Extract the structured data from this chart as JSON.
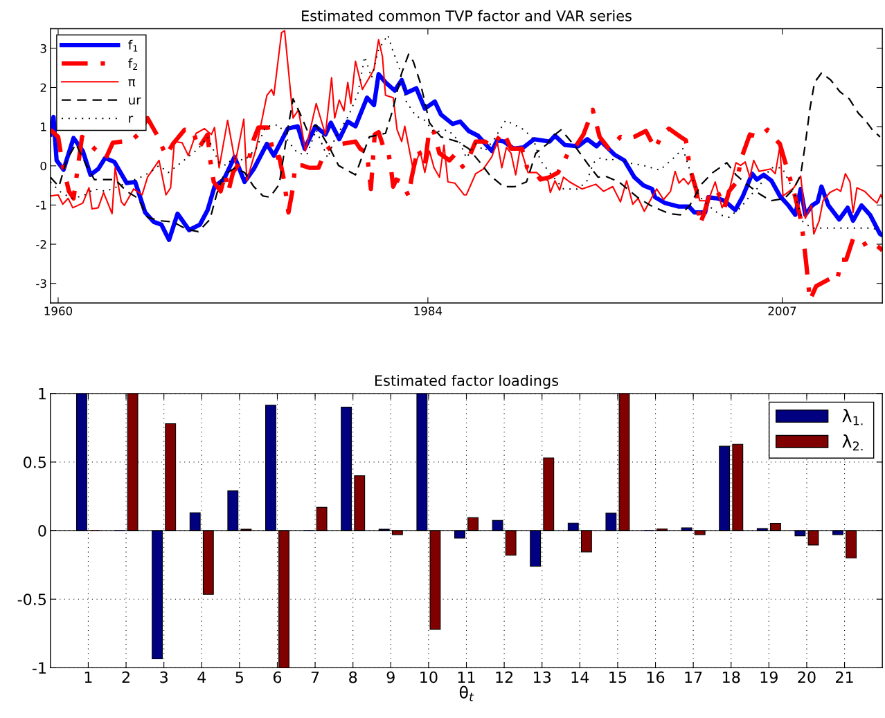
{
  "chart_data": [
    {
      "type": "line",
      "title": "Estimated common TVP factor and VAR series",
      "xlim": [
        1959.5,
        2013.5
      ],
      "xticks": [
        1960,
        1984,
        2007
      ],
      "ylim": [
        -3.5,
        3.5
      ],
      "yticks": [
        -3,
        -2,
        -1,
        0,
        1,
        2,
        3
      ],
      "legend": "top left",
      "grid": false,
      "marker": "none",
      "series": [
        {
          "name": "f$_{1}$",
          "color": "#0000ff",
          "line_style": "solid",
          "x": [
            1959.5,
            1959.7,
            1959.9,
            1960.35,
            1961.0,
            1961.6,
            1962.1,
            1962.6,
            1963.05,
            1963.65,
            1964.45,
            1965.0,
            1965.65,
            1966.2,
            1966.7,
            1967.2,
            1967.75,
            1968.5,
            1969.2,
            1969.7,
            1970.15,
            1970.75,
            1971.45,
            1972.1,
            1972.7,
            1973.55,
            1974.0,
            1974.9,
            1975.55,
            1976.0,
            1976.7,
            1977.35,
            1977.7,
            1978.25,
            1978.8,
            1979.3,
            1980.05,
            1980.5,
            1980.8,
            1981.25,
            1981.85,
            1982.3,
            1982.6,
            1983.25,
            1983.8,
            1984.45,
            1984.85,
            1985.6,
            1986.1,
            1986.65,
            1987.25,
            1988.15,
            1988.5,
            1988.95,
            1989.55,
            1990.2,
            1990.9,
            1991.9,
            1992.25,
            1992.9,
            1993.75,
            1994.35,
            1994.95,
            1995.25,
            1996.1,
            1996.75,
            1997.4,
            1998.0,
            1998.55,
            1998.75,
            1999.4,
            2000.3,
            2000.95,
            2001.3,
            2002.0,
            2002.2,
            2002.8,
            2003.25,
            2003.95,
            2004.45,
            2005.05,
            2005.35,
            2005.8,
            2006.3,
            2006.85,
            2007.4,
            2007.85,
            2008.2,
            2008.5,
            2008.95,
            2009.3,
            2009.55,
            2010.0,
            2010.7,
            2011.25,
            2011.6,
            2012.15,
            2012.7,
            2013.35,
            2013.5
          ],
          "values": [
            0.8,
            1.25,
            0.14,
            -0.1,
            0.71,
            0.38,
            -0.23,
            -0.08,
            0.2,
            0.1,
            -0.44,
            -0.41,
            -1.19,
            -1.43,
            -1.5,
            -1.89,
            -1.22,
            -1.64,
            -1.5,
            -1.13,
            -0.53,
            -0.35,
            0.23,
            -0.41,
            -0.08,
            0.56,
            0.26,
            0.95,
            1.01,
            0.44,
            1.01,
            0.8,
            1.1,
            0.68,
            1.13,
            1.01,
            1.74,
            1.55,
            2.34,
            2.13,
            1.92,
            2.19,
            1.86,
            1.98,
            1.46,
            1.64,
            1.31,
            1.07,
            1.13,
            0.89,
            0.77,
            0.38,
            0.65,
            0.62,
            0.44,
            0.47,
            0.68,
            0.62,
            0.77,
            0.53,
            0.5,
            0.68,
            0.5,
            0.62,
            0.29,
            0.14,
            -0.29,
            -0.5,
            -0.59,
            -0.8,
            -0.95,
            -1.04,
            -1.04,
            -1.19,
            -1.19,
            -0.8,
            -0.83,
            -0.89,
            -1.13,
            -0.77,
            -0.2,
            -0.35,
            -0.23,
            -0.38,
            -0.77,
            -1.01,
            -1.25,
            -0.59,
            -1.25,
            -1.01,
            -0.92,
            -0.53,
            -1.01,
            -1.37,
            -1.07,
            -1.4,
            -1.01,
            -1.25,
            -1.74,
            -1.77
          ]
        },
        {
          "name": "f$_{2}$",
          "color": "#ff0000",
          "line_style": "dashdot",
          "x": [
            1959.5,
            1960.0,
            1960.3,
            1960.7,
            1961.0,
            1961.55,
            1962.35,
            1962.8,
            1963.1,
            1963.55,
            1964.15,
            1964.75,
            1965.2,
            1965.8,
            1966.4,
            1967.0,
            1967.45,
            1968.2,
            1968.75,
            1969.1,
            1969.7,
            1969.85,
            1970.1,
            1970.55,
            1970.85,
            1971.05,
            1971.35,
            1971.8,
            1972.4,
            1972.7,
            1973.0,
            1973.6,
            1974.05,
            1974.35,
            1974.65,
            1974.95,
            1975.2,
            1975.4,
            1975.85,
            1976.3,
            1976.9,
            1977.35,
            1977.95,
            1978.4,
            1979.3,
            1979.6,
            1980.05,
            1980.3,
            1980.55,
            1980.8,
            1981.1,
            1981.4,
            1981.6,
            1981.75,
            1981.95,
            1982.3,
            1982.75,
            1982.95,
            1983.35,
            1983.8,
            1984.1,
            1984.4,
            1984.75,
            1985.4,
            1985.75,
            1986.25,
            1986.65,
            1987.1,
            1987.7,
            1988.15,
            1988.9,
            1989.4,
            1990.1,
            1990.45,
            1991.0,
            1991.3,
            1991.9,
            1992.45,
            1992.8,
            1993.05,
            1993.7,
            1994.1,
            1994.7,
            1995.15,
            1995.75,
            1996.5,
            1996.8,
            1997.4,
            1998.15,
            1998.75,
            1999.2,
            1999.65,
            2000.4,
            2000.75,
            2001.0,
            2001.45,
            2001.65,
            2001.9,
            2002.35,
            2002.8,
            2003.25,
            2003.55,
            2004.05,
            2004.35,
            2004.9,
            2005.5,
            2006.05,
            2006.55,
            2006.85,
            2007.3,
            2007.75,
            2008.25,
            2008.55,
            2008.8,
            2009.2,
            2010.1,
            2010.55,
            2010.85,
            2011.15,
            2011.6,
            2012.15,
            2012.7,
            2013.35,
            2013.5
          ],
          "values": [
            0.92,
            0.74,
            0.01,
            -0.65,
            -0.83,
            0.74,
            0.44,
            0.29,
            0.2,
            0.59,
            0.62,
            0.65,
            0.8,
            1.22,
            0.8,
            0.26,
            0.56,
            0.92,
            0.92,
            0.44,
            0.8,
            0.2,
            -0.41,
            -0.65,
            -0.2,
            -0.65,
            -0.17,
            0.1,
            0.2,
            0.68,
            0.98,
            0.98,
            0.2,
            0.23,
            -0.35,
            -1.19,
            -0.65,
            0.01,
            0.01,
            -0.05,
            -0.05,
            0.38,
            0.56,
            0.56,
            0.62,
            0.44,
            0.32,
            -0.59,
            0.8,
            0.86,
            0.5,
            0.44,
            -0.05,
            -0.53,
            -0.35,
            -0.41,
            -0.77,
            -0.29,
            0.44,
            0.01,
            0.95,
            0.86,
            0.32,
            0.14,
            0.29,
            -0.02,
            0.2,
            0.62,
            0.62,
            0.5,
            0.86,
            0.44,
            0.44,
            -0.05,
            -0.17,
            -0.35,
            -0.29,
            -0.17,
            0.08,
            0.29,
            0.56,
            0.8,
            1.43,
            0.74,
            0.44,
            0.74,
            0.68,
            0.74,
            0.89,
            0.44,
            0.8,
            0.95,
            0.74,
            0.65,
            -0.05,
            -0.65,
            -1.49,
            -1.25,
            -0.65,
            -0.65,
            -1.07,
            -0.65,
            -0.41,
            0.2,
            0.8,
            0.74,
            0.92,
            0.68,
            0.56,
            -0.05,
            -0.65,
            -1.43,
            -2.46,
            -3.43,
            -3.07,
            -2.88,
            -2.94,
            -2.4,
            -2.4,
            -1.86,
            -2.04,
            -1.92,
            -2.1,
            -2.16
          ]
        },
        {
          "name": "π",
          "color": "#ff0000",
          "line_style": "solid",
          "x": [
            1959.5,
            1960.0,
            1960.3,
            1960.65,
            1960.95,
            1961.6,
            1962.0,
            1962.2,
            1962.6,
            1962.95,
            1963.5,
            1963.7,
            1964.1,
            1964.3,
            1964.9,
            1965.45,
            1965.8,
            1966.55,
            1967.0,
            1967.3,
            1967.55,
            1968.05,
            1968.45,
            1968.95,
            1969.5,
            1969.95,
            1970.15,
            1970.45,
            1971.0,
            1971.5,
            1972.05,
            1972.25,
            1972.85,
            1973.55,
            1973.85,
            1974.0,
            1974.5,
            1974.7,
            1975.25,
            1975.6,
            1976.05,
            1976.75,
            1977.35,
            1977.75,
            1977.95,
            1978.25,
            1978.55,
            1978.8,
            1979.0,
            1979.3,
            1979.75,
            1980.5,
            1980.8,
            1981.05,
            1981.25,
            1981.75,
            1982.0,
            1982.3,
            1982.5,
            1983.05,
            1983.5,
            1983.8,
            1984.1,
            1984.4,
            1984.75,
            1985.05,
            1985.3,
            1985.75,
            1986.35,
            1986.5,
            1987.1,
            1987.6,
            1988.15,
            1988.5,
            1988.8,
            1989.1,
            1989.4,
            1989.7,
            1990.0,
            1990.5,
            1991.05,
            1991.4,
            1991.8,
            1991.95,
            1992.25,
            1992.55,
            1992.8,
            1993.2,
            1994.0,
            1994.9,
            1995.4,
            1996.0,
            1996.5,
            1996.9,
            1997.3,
            1997.65,
            1998.05,
            1998.55,
            1998.85,
            1999.3,
            1999.75,
            2000.05,
            2000.3,
            2000.6,
            2000.9,
            2001.25,
            2001.65,
            2002.2,
            2002.65,
            2003.1,
            2003.55,
            2004.0,
            2004.3,
            2004.6,
            2004.9,
            2005.15,
            2005.5,
            2006.25,
            2006.55,
            2006.85,
            2007.05,
            2007.75,
            2008.2,
            2008.5,
            2008.9,
            2009.05,
            2009.4,
            2009.65,
            2010.1,
            2010.55,
            2010.8,
            2011.1,
            2011.4,
            2011.6,
            2011.85,
            2012.35,
            2012.8,
            2013.15,
            2013.4,
            2013.5
          ],
          "values": [
            -0.77,
            -0.74,
            -0.98,
            -0.83,
            -1.07,
            -0.95,
            -0.56,
            -1.1,
            -1.07,
            -0.68,
            -1.22,
            -0.05,
            -0.92,
            -1.01,
            -0.59,
            -0.74,
            -0.29,
            0.14,
            -0.74,
            -0.56,
            0.62,
            0.59,
            0.26,
            0.83,
            0.95,
            0.8,
            0.98,
            -0.05,
            1.16,
            0.08,
            1.19,
            -0.38,
            0.44,
            1.8,
            1.95,
            1.8,
            3.4,
            3.45,
            1.22,
            1.43,
            0.38,
            1.59,
            0.8,
            2.25,
            1.22,
            1.68,
            1.4,
            2.13,
            1.59,
            2.67,
            1.95,
            2.46,
            3.22,
            2.79,
            1.8,
            1.74,
            0.92,
            0.62,
            1.01,
            -0.11,
            0.38,
            -0.17,
            0.38,
            -0.05,
            -0.29,
            0.53,
            -0.41,
            -0.44,
            -0.74,
            -0.74,
            -0.2,
            -0.08,
            0.23,
            0.62,
            -0.05,
            0.47,
            0.32,
            -0.23,
            0.47,
            -0.17,
            -0.17,
            -0.29,
            -0.38,
            -0.68,
            -0.38,
            -0.62,
            -0.29,
            -0.41,
            -0.59,
            -0.47,
            -0.65,
            -0.53,
            -0.92,
            -0.38,
            -0.98,
            -0.83,
            -1.16,
            -0.8,
            -0.59,
            -0.86,
            -0.65,
            -0.14,
            -0.44,
            -0.32,
            -0.47,
            -0.26,
            -0.89,
            -0.89,
            -0.41,
            -1.07,
            -0.65,
            0.08,
            0.01,
            0.1,
            -0.29,
            0.14,
            -0.14,
            -0.08,
            -0.2,
            0.5,
            -0.77,
            -0.56,
            -0.26,
            -1.34,
            -1.01,
            -1.74,
            -1.4,
            -0.89,
            -0.68,
            -0.59,
            -0.65,
            -0.2,
            -0.41,
            -1.19,
            -0.56,
            -0.65,
            -0.83,
            -0.95,
            -0.74,
            -0.83
          ]
        },
        {
          "name": "ur",
          "color": "#000000",
          "line_style": "dashed",
          "x": [
            1959.5,
            1960.05,
            1960.55,
            1961.15,
            1961.75,
            1962.35,
            1962.95,
            1963.7,
            1964.45,
            1965.2,
            1965.8,
            1966.55,
            1967.45,
            1968.35,
            1969.1,
            1969.85,
            1970.3,
            1970.75,
            1971.5,
            1972.1,
            1972.7,
            1973.3,
            1973.75,
            1974.35,
            1974.95,
            1975.25,
            1975.7,
            1976.15,
            1976.75,
            1977.65,
            1978.2,
            1979.3,
            1980.2,
            1981.25,
            1981.7,
            1982.3,
            1982.75,
            1983.05,
            1983.5,
            1983.8,
            1984.1,
            1984.85,
            1985.9,
            1986.65,
            1987.4,
            1988.0,
            1988.9,
            1989.65,
            1990.4,
            1991.0,
            1991.75,
            1992.05,
            1992.65,
            1993.55,
            1994.45,
            1995.05,
            1995.5,
            1996.4,
            1996.95,
            1997.7,
            1998.45,
            1999.65,
            2000.4,
            2001.0,
            2001.75,
            2002.5,
            2003.4,
            2004.0,
            2004.7,
            2005.5,
            2006.25,
            2007.15,
            2007.75,
            2008.2,
            2008.5,
            2008.8,
            2009.1,
            2009.55,
            2010.15,
            2010.75,
            2011.35,
            2011.95,
            2012.4,
            2012.85,
            2013.35
          ],
          "values": [
            -0.29,
            -0.53,
            0.14,
            0.56,
            0.08,
            -0.35,
            -0.35,
            -0.35,
            -0.65,
            -0.83,
            -1.31,
            -1.4,
            -1.43,
            -1.62,
            -1.68,
            -1.37,
            -0.71,
            -0.23,
            -0.05,
            -0.17,
            -0.53,
            -0.77,
            -0.8,
            -0.47,
            1.04,
            1.71,
            1.34,
            0.92,
            1.04,
            0.44,
            0.01,
            -0.23,
            0.74,
            0.83,
            1.4,
            2.37,
            2.85,
            2.67,
            2.13,
            1.64,
            1.1,
            0.74,
            0.62,
            0.44,
            0.08,
            -0.23,
            -0.53,
            -0.53,
            -0.41,
            0.32,
            0.56,
            0.74,
            0.92,
            0.5,
            0.01,
            -0.29,
            -0.26,
            -0.41,
            -0.59,
            -0.83,
            -1.01,
            -1.22,
            -1.25,
            -1.01,
            -0.47,
            -0.17,
            0.08,
            -0.23,
            -0.47,
            -0.71,
            -0.89,
            -0.83,
            -0.59,
            -0.23,
            0.56,
            1.46,
            2.13,
            2.37,
            2.19,
            1.89,
            1.71,
            1.34,
            1.16,
            0.92,
            0.74
          ]
        },
        {
          "name": "r",
          "color": "#000000",
          "line_style": "dotted",
          "x": [
            1959.5,
            1960.1,
            1960.85,
            1961.6,
            1962.35,
            1963.1,
            1963.85,
            1964.6,
            1965.35,
            1965.95,
            1966.55,
            1967.15,
            1967.75,
            1968.35,
            1969.1,
            1969.7,
            1970.45,
            1970.9,
            1971.35,
            1972.1,
            1972.85,
            1973.45,
            1973.9,
            1974.35,
            1974.95,
            1975.55,
            1976.15,
            1976.75,
            1977.5,
            1977.95,
            1978.85,
            1979.45,
            1979.9,
            1980.35,
            1980.8,
            1981.4,
            1981.7,
            1982.15,
            1982.6,
            1983.2,
            1983.8,
            1984.4,
            1985.3,
            1986.05,
            1986.5,
            1987.1,
            1987.7,
            1988.3,
            1989.05,
            1989.65,
            1990.25,
            1990.85,
            1991.3,
            1991.9,
            1992.8,
            1993.7,
            1994.3,
            1994.75,
            1995.2,
            1995.8,
            1996.4,
            1996.95,
            1998.0,
            1999.05,
            1999.95,
            2000.55,
            2001.15,
            2001.6,
            2002.2,
            2002.95,
            2003.55,
            2004.3,
            2004.9,
            2005.5,
            2006.25,
            2007.0,
            2007.75,
            2008.35,
            2008.95,
            2010.0,
            2011.5,
            2012.9,
            2013.35
          ],
          "values": [
            -0.41,
            -0.65,
            -0.83,
            -0.77,
            -0.59,
            -0.65,
            -0.53,
            -0.41,
            -0.29,
            -0.17,
            0.01,
            -0.17,
            0.01,
            0.2,
            0.44,
            0.74,
            0.08,
            0.01,
            0.2,
            0.14,
            0.44,
            0.98,
            1.04,
            1.04,
            0.62,
            0.32,
            0.29,
            0.92,
            0.2,
            0.68,
            1.28,
            1.83,
            2.79,
            2.25,
            2.97,
            3.34,
            2.97,
            2.49,
            1.64,
            1.28,
            1.16,
            0.86,
            0.92,
            0.62,
            0.2,
            0.56,
            0.38,
            0.68,
            1.16,
            1.04,
            0.92,
            0.68,
            0.14,
            -0.17,
            -0.59,
            -0.59,
            -0.41,
            0.08,
            0.2,
            0.14,
            0.2,
            0.08,
            0.01,
            -0.11,
            0.2,
            0.44,
            -0.29,
            -0.77,
            -1.01,
            -1.25,
            -1.31,
            -1.07,
            -0.77,
            -0.53,
            -0.05,
            -0.05,
            -0.65,
            -1.43,
            -1.59,
            -1.59,
            -1.59,
            -1.59,
            -1.68
          ]
        }
      ]
    },
    {
      "type": "bar",
      "title": "Estimated factor loadings",
      "xlabel": "θ$_{t}$",
      "categories": [
        "1",
        "2",
        "3",
        "4",
        "5",
        "6",
        "7",
        "8",
        "9",
        "10",
        "11",
        "12",
        "13",
        "14",
        "15",
        "16",
        "17",
        "18",
        "19",
        "20",
        "21"
      ],
      "ylim": [
        -1,
        1
      ],
      "yticks": [
        -1,
        -0.5,
        0,
        0.5,
        1
      ],
      "grid": true,
      "legend": "top right",
      "series": [
        {
          "name": "λ$_{1.}$",
          "color": "#000080",
          "values": [
            1.0,
            0.0,
            -0.935,
            0.13,
            0.29,
            0.915,
            0.0,
            0.9,
            0.01,
            1.0,
            -0.055,
            0.075,
            -0.26,
            0.055,
            0.127,
            0.0,
            0.02,
            0.615,
            0.015,
            -0.038,
            -0.03
          ]
        },
        {
          "name": "λ$_{2.}$",
          "color": "#800000",
          "values": [
            0.0,
            1.0,
            0.78,
            -0.465,
            0.01,
            -1.0,
            0.17,
            0.4,
            -0.03,
            -0.72,
            0.095,
            -0.18,
            0.53,
            -0.155,
            1.0,
            0.012,
            -0.03,
            0.63,
            0.053,
            -0.105,
            -0.2
          ]
        }
      ]
    }
  ]
}
